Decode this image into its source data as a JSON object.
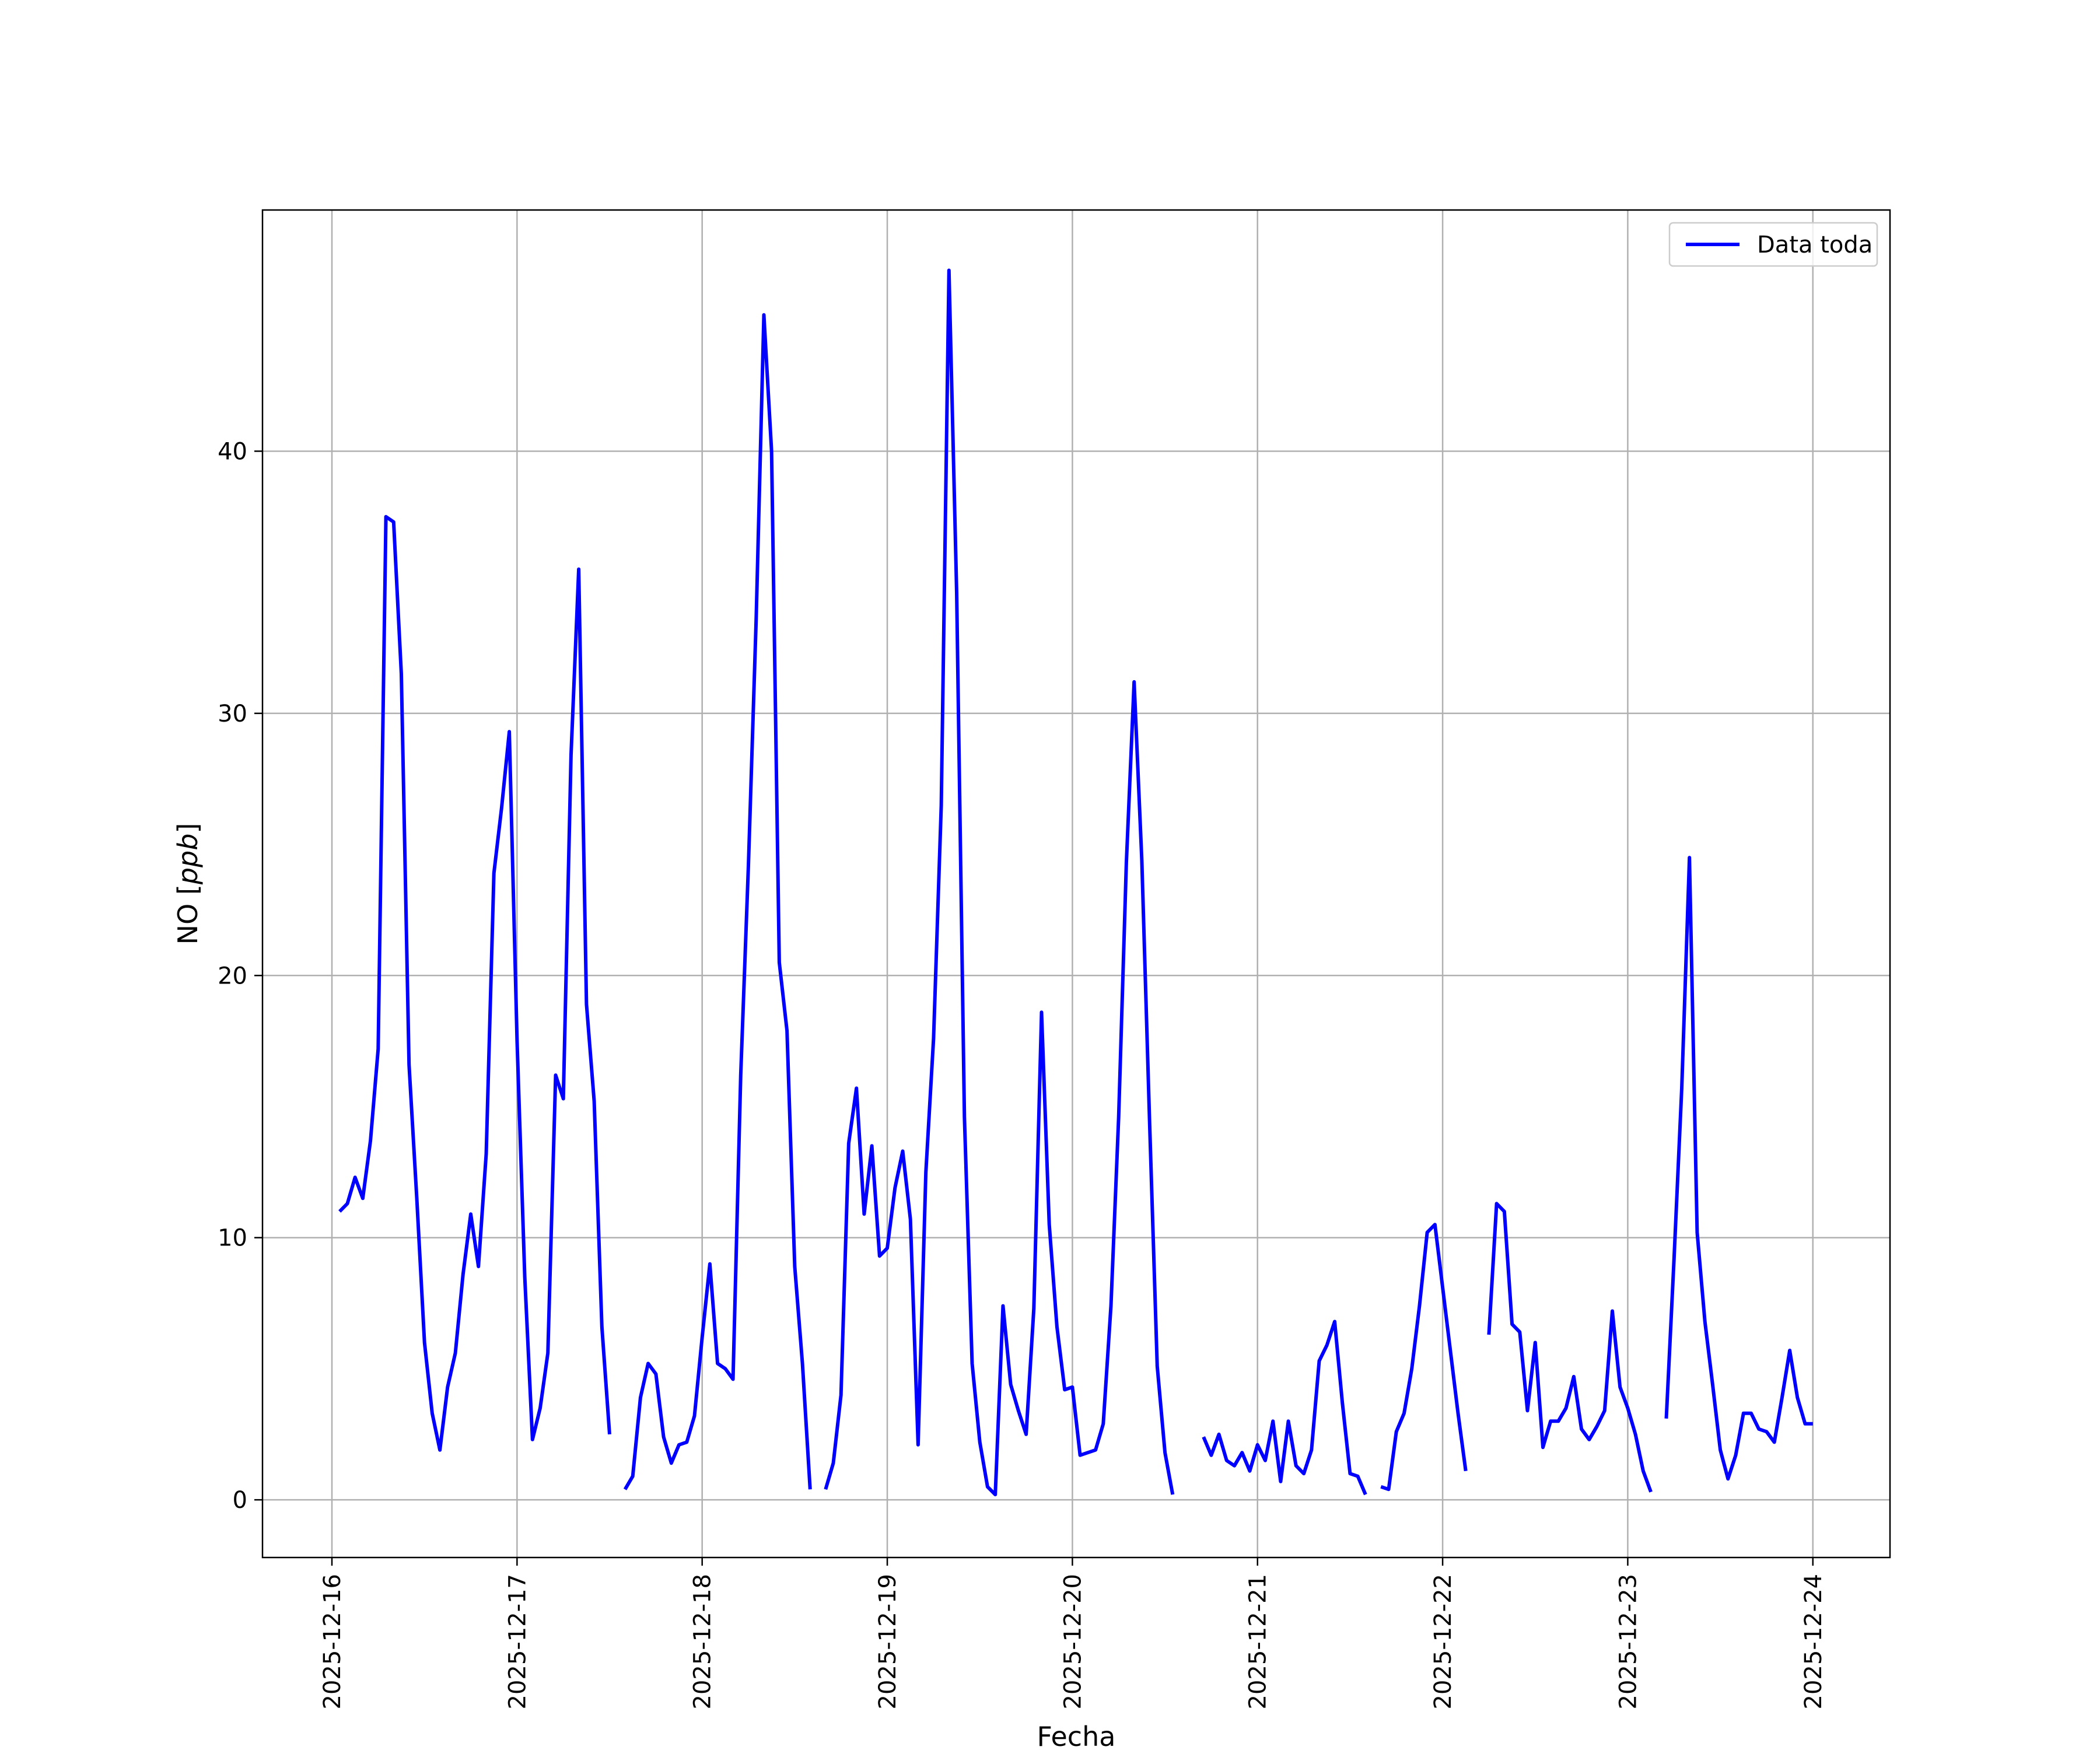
{
  "chart_data": {
    "type": "line",
    "xlabel": "Fecha",
    "ylabel": "NO [ppb]",
    "ylabel_main": "NO [",
    "ylabel_unit": "ppb",
    "ylabel_close": "]",
    "ylim": [
      -2.2,
      49.2
    ],
    "xlim": [
      "2025-12-15T15:00",
      "2025-12-24T10:00"
    ],
    "grid": true,
    "legend_position": "upper right",
    "x_ticks": [
      {
        "value": "2025-12-16",
        "label": "2025-12-16"
      },
      {
        "value": "2025-12-17",
        "label": "2025-12-17"
      },
      {
        "value": "2025-12-18",
        "label": "2025-12-18"
      },
      {
        "value": "2025-12-19",
        "label": "2025-12-19"
      },
      {
        "value": "2025-12-20",
        "label": "2025-12-20"
      },
      {
        "value": "2025-12-21",
        "label": "2025-12-21"
      },
      {
        "value": "2025-12-22",
        "label": "2025-12-22"
      },
      {
        "value": "2025-12-23",
        "label": "2025-12-23"
      },
      {
        "value": "2025-12-24",
        "label": "2025-12-24"
      }
    ],
    "y_ticks": [
      {
        "value": 0,
        "label": "0"
      },
      {
        "value": 10,
        "label": "10"
      },
      {
        "value": 20,
        "label": "20"
      },
      {
        "value": 30,
        "label": "30"
      },
      {
        "value": 40,
        "label": "40"
      }
    ],
    "series": [
      {
        "name": "Data toda",
        "color": "#0000ff",
        "segments": [
          [
            [
              "2025-12-16T01:00",
              11.0
            ],
            [
              "2025-12-16T02:00",
              11.3
            ],
            [
              "2025-12-16T03:00",
              12.3
            ],
            [
              "2025-12-16T04:00",
              11.5
            ],
            [
              "2025-12-16T05:00",
              13.7
            ],
            [
              "2025-12-16T06:00",
              17.2
            ],
            [
              "2025-12-16T07:00",
              37.5
            ],
            [
              "2025-12-16T08:00",
              37.3
            ],
            [
              "2025-12-16T09:00",
              31.5
            ],
            [
              "2025-12-16T10:00",
              16.6
            ],
            [
              "2025-12-16T11:00",
              11.5
            ],
            [
              "2025-12-16T12:00",
              6.0
            ],
            [
              "2025-12-16T13:00",
              3.3
            ],
            [
              "2025-12-16T14:00",
              1.9
            ],
            [
              "2025-12-16T15:00",
              4.3
            ],
            [
              "2025-12-16T16:00",
              5.6
            ],
            [
              "2025-12-16T17:00",
              8.6
            ],
            [
              "2025-12-16T18:00",
              10.9
            ],
            [
              "2025-12-16T19:00",
              8.9
            ],
            [
              "2025-12-16T20:00",
              13.2
            ],
            [
              "2025-12-16T21:00",
              23.9
            ],
            [
              "2025-12-16T22:00",
              26.4
            ],
            [
              "2025-12-16T23:00",
              29.3
            ],
            [
              "2025-12-17T00:00",
              17.5
            ],
            [
              "2025-12-17T01:00",
              8.5
            ],
            [
              "2025-12-17T02:00",
              2.3
            ],
            [
              "2025-12-17T03:00",
              3.5
            ],
            [
              "2025-12-17T04:00",
              5.6
            ],
            [
              "2025-12-17T05:00",
              16.2
            ],
            [
              "2025-12-17T06:00",
              15.3
            ],
            [
              "2025-12-17T07:00",
              28.4
            ],
            [
              "2025-12-17T08:00",
              35.5
            ],
            [
              "2025-12-17T09:00",
              18.9
            ],
            [
              "2025-12-17T10:00",
              15.2
            ],
            [
              "2025-12-17T11:00",
              6.6
            ],
            [
              "2025-12-17T12:00",
              2.5
            ]
          ],
          [
            [
              "2025-12-17T14:00",
              0.4
            ],
            [
              "2025-12-17T15:00",
              0.9
            ],
            [
              "2025-12-17T16:00",
              3.9
            ],
            [
              "2025-12-17T17:00",
              5.2
            ],
            [
              "2025-12-17T18:00",
              4.8
            ],
            [
              "2025-12-17T19:00",
              2.4
            ],
            [
              "2025-12-17T20:00",
              1.4
            ],
            [
              "2025-12-17T21:00",
              2.1
            ],
            [
              "2025-12-17T22:00",
              2.2
            ],
            [
              "2025-12-17T23:00",
              3.2
            ],
            [
              "2025-12-18T00:00",
              6.2
            ],
            [
              "2025-12-18T01:00",
              9.0
            ],
            [
              "2025-12-18T02:00",
              5.2
            ],
            [
              "2025-12-18T03:00",
              5.0
            ],
            [
              "2025-12-18T04:00",
              4.6
            ],
            [
              "2025-12-18T05:00",
              16.2
            ],
            [
              "2025-12-18T06:00",
              24.2
            ],
            [
              "2025-12-18T07:00",
              33.6
            ],
            [
              "2025-12-18T08:00",
              45.2
            ],
            [
              "2025-12-18T09:00",
              40.0
            ],
            [
              "2025-12-18T10:00",
              20.5
            ],
            [
              "2025-12-18T11:00",
              17.9
            ],
            [
              "2025-12-18T12:00",
              8.9
            ],
            [
              "2025-12-18T13:00",
              5.2
            ],
            [
              "2025-12-18T14:00",
              0.4
            ]
          ],
          [
            [
              "2025-12-18T16:00",
              0.4
            ],
            [
              "2025-12-18T17:00",
              1.4
            ],
            [
              "2025-12-18T18:00",
              4.0
            ],
            [
              "2025-12-18T19:00",
              13.6
            ],
            [
              "2025-12-18T20:00",
              15.7
            ],
            [
              "2025-12-18T21:00",
              10.9
            ],
            [
              "2025-12-18T22:00",
              13.5
            ],
            [
              "2025-12-18T23:00",
              9.3
            ],
            [
              "2025-12-19T00:00",
              9.6
            ],
            [
              "2025-12-19T01:00",
              11.9
            ],
            [
              "2025-12-19T02:00",
              13.3
            ],
            [
              "2025-12-19T03:00",
              10.7
            ],
            [
              "2025-12-19T04:00",
              2.1
            ],
            [
              "2025-12-19T05:00",
              12.5
            ],
            [
              "2025-12-19T06:00",
              17.6
            ],
            [
              "2025-12-19T07:00",
              26.5
            ],
            [
              "2025-12-19T08:00",
              46.9
            ],
            [
              "2025-12-19T09:00",
              34.6
            ],
            [
              "2025-12-19T10:00",
              14.6
            ],
            [
              "2025-12-19T11:00",
              5.2
            ],
            [
              "2025-12-19T12:00",
              2.2
            ],
            [
              "2025-12-19T13:00",
              0.5
            ],
            [
              "2025-12-19T14:00",
              0.2
            ],
            [
              "2025-12-19T15:00",
              7.4
            ],
            [
              "2025-12-19T16:00",
              4.4
            ],
            [
              "2025-12-19T17:00",
              3.4
            ],
            [
              "2025-12-19T18:00",
              2.5
            ],
            [
              "2025-12-19T19:00",
              7.3
            ],
            [
              "2025-12-19T20:00",
              18.6
            ],
            [
              "2025-12-19T21:00",
              10.5
            ],
            [
              "2025-12-19T22:00",
              6.6
            ],
            [
              "2025-12-19T23:00",
              4.2
            ],
            [
              "2025-12-20T00:00",
              4.3
            ],
            [
              "2025-12-20T01:00",
              1.7
            ],
            [
              "2025-12-20T02:00",
              1.8
            ],
            [
              "2025-12-20T03:00",
              1.9
            ],
            [
              "2025-12-20T04:00",
              2.9
            ],
            [
              "2025-12-20T05:00",
              7.4
            ],
            [
              "2025-12-20T06:00",
              14.6
            ],
            [
              "2025-12-20T07:00",
              24.3
            ],
            [
              "2025-12-20T08:00",
              31.2
            ],
            [
              "2025-12-20T09:00",
              24.4
            ],
            [
              "2025-12-20T10:00",
              14.5
            ],
            [
              "2025-12-20T11:00",
              5.1
            ],
            [
              "2025-12-20T12:00",
              1.8
            ],
            [
              "2025-12-20T13:00",
              0.2
            ]
          ],
          [
            [
              "2025-12-20T17:00",
              2.4
            ],
            [
              "2025-12-20T18:00",
              1.7
            ],
            [
              "2025-12-20T19:00",
              2.5
            ],
            [
              "2025-12-20T20:00",
              1.5
            ],
            [
              "2025-12-20T21:00",
              1.3
            ],
            [
              "2025-12-20T22:00",
              1.8
            ],
            [
              "2025-12-20T23:00",
              1.1
            ],
            [
              "2025-12-21T00:00",
              2.1
            ],
            [
              "2025-12-21T01:00",
              1.5
            ],
            [
              "2025-12-21T02:00",
              3.0
            ],
            [
              "2025-12-21T03:00",
              0.7
            ],
            [
              "2025-12-21T04:00",
              3.0
            ],
            [
              "2025-12-21T05:00",
              1.3
            ],
            [
              "2025-12-21T06:00",
              1.0
            ],
            [
              "2025-12-21T07:00",
              1.9
            ],
            [
              "2025-12-21T08:00",
              5.3
            ],
            [
              "2025-12-21T09:00",
              5.9
            ],
            [
              "2025-12-21T10:00",
              6.8
            ],
            [
              "2025-12-21T11:00",
              3.7
            ],
            [
              "2025-12-21T12:00",
              1.0
            ],
            [
              "2025-12-21T13:00",
              0.9
            ],
            [
              "2025-12-21T14:00",
              0.2
            ]
          ],
          [
            [
              "2025-12-21T16:00",
              0.5
            ],
            [
              "2025-12-21T17:00",
              0.4
            ],
            [
              "2025-12-21T18:00",
              2.6
            ],
            [
              "2025-12-21T19:00",
              3.3
            ],
            [
              "2025-12-21T20:00",
              5.0
            ],
            [
              "2025-12-21T21:00",
              7.4
            ],
            [
              "2025-12-21T22:00",
              10.2
            ],
            [
              "2025-12-21T23:00",
              10.5
            ],
            [
              "2025-12-22T00:00",
              8.1
            ],
            [
              "2025-12-22T01:00",
              5.7
            ],
            [
              "2025-12-22T02:00",
              3.3
            ],
            [
              "2025-12-22T03:00",
              1.1
            ]
          ],
          [
            [
              "2025-12-22T06:00",
              6.3
            ],
            [
              "2025-12-22T07:00",
              11.3
            ],
            [
              "2025-12-22T08:00",
              11.0
            ],
            [
              "2025-12-22T09:00",
              6.7
            ],
            [
              "2025-12-22T10:00",
              6.4
            ],
            [
              "2025-12-22T11:00",
              3.4
            ],
            [
              "2025-12-22T12:00",
              6.0
            ],
            [
              "2025-12-22T13:00",
              2.0
            ],
            [
              "2025-12-22T14:00",
              3.0
            ],
            [
              "2025-12-22T15:00",
              3.0
            ],
            [
              "2025-12-22T16:00",
              3.5
            ],
            [
              "2025-12-22T17:00",
              4.7
            ],
            [
              "2025-12-22T18:00",
              2.7
            ],
            [
              "2025-12-22T19:00",
              2.3
            ],
            [
              "2025-12-22T20:00",
              2.8
            ],
            [
              "2025-12-22T21:00",
              3.4
            ],
            [
              "2025-12-22T22:00",
              7.2
            ],
            [
              "2025-12-22T23:00",
              4.3
            ],
            [
              "2025-12-23T00:00",
              3.5
            ],
            [
              "2025-12-23T01:00",
              2.5
            ],
            [
              "2025-12-23T02:00",
              1.1
            ],
            [
              "2025-12-23T03:00",
              0.3
            ]
          ],
          [
            [
              "2025-12-23T05:00",
              3.1
            ],
            [
              "2025-12-23T06:00",
              9.2
            ],
            [
              "2025-12-23T07:00",
              15.7
            ],
            [
              "2025-12-23T08:00",
              24.5
            ],
            [
              "2025-12-23T09:00",
              10.2
            ],
            [
              "2025-12-23T10:00",
              6.8
            ],
            [
              "2025-12-23T11:00",
              4.4
            ],
            [
              "2025-12-23T12:00",
              1.9
            ],
            [
              "2025-12-23T13:00",
              0.8
            ],
            [
              "2025-12-23T14:00",
              1.7
            ],
            [
              "2025-12-23T15:00",
              3.3
            ],
            [
              "2025-12-23T16:00",
              3.3
            ],
            [
              "2025-12-23T17:00",
              2.7
            ],
            [
              "2025-12-23T18:00",
              2.6
            ],
            [
              "2025-12-23T19:00",
              2.2
            ],
            [
              "2025-12-23T20:00",
              3.9
            ],
            [
              "2025-12-23T21:00",
              5.7
            ],
            [
              "2025-12-23T22:00",
              3.9
            ],
            [
              "2025-12-23T23:00",
              2.9
            ],
            [
              "2025-12-24T00:00",
              2.9
            ]
          ]
        ]
      }
    ]
  }
}
